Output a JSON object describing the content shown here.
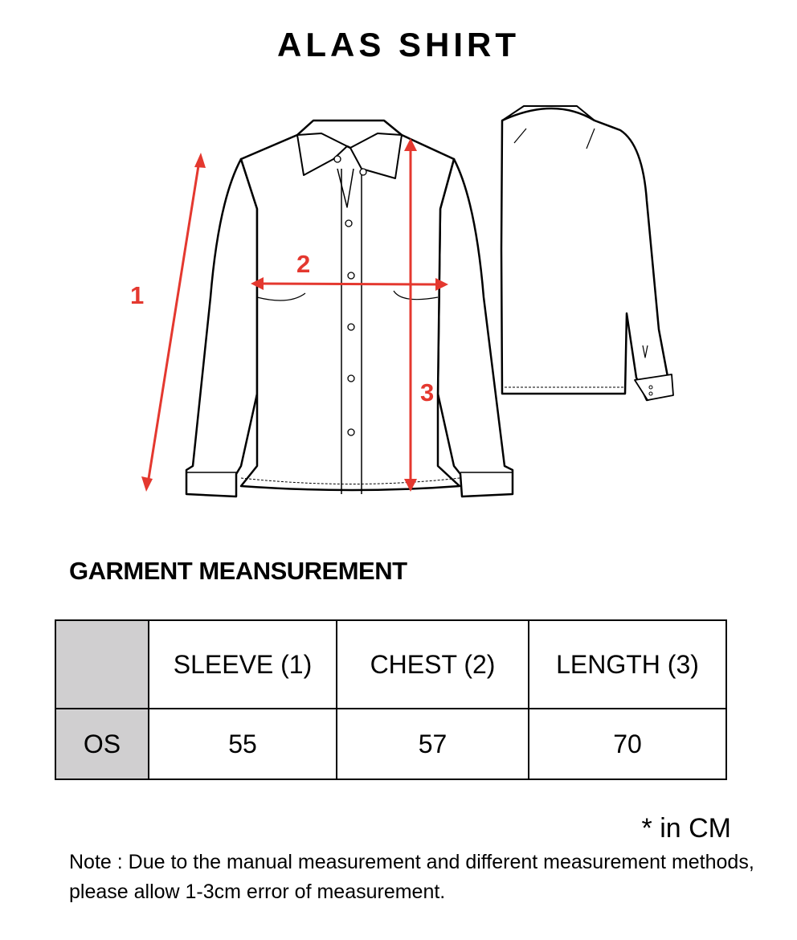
{
  "title": "ALAS SHIRT",
  "diagram": {
    "labels": {
      "sleeve": "1",
      "chest": "2",
      "length": "3"
    },
    "arrow_color": "#e4382f"
  },
  "section_title": "GARMENT MEANSUREMENT",
  "table": {
    "header": [
      "SLEEVE (1)",
      "CHEST (2)",
      "LENGTH (3)"
    ],
    "rows": [
      {
        "size": "OS",
        "values": [
          "55",
          "57",
          "70"
        ]
      }
    ]
  },
  "unit_note": "* in CM",
  "note": "Note : Due to the manual measurement and different measurement methods, please allow 1-3cm error of measurement."
}
